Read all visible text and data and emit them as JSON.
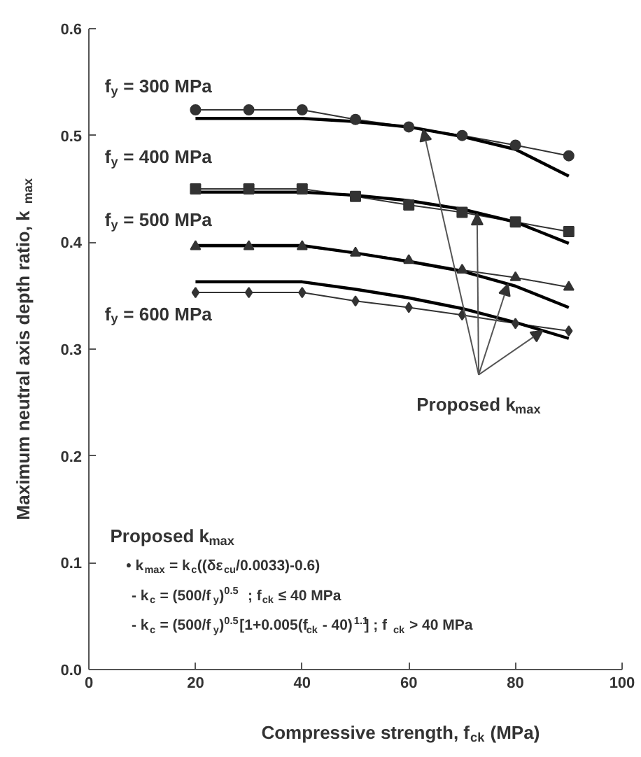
{
  "chart_data": {
    "type": "line",
    "xlabel": "Compressive strength, f$_{ck}$ (MPa)",
    "ylabel": "Maximum neutral axis depth ratio, k$_{max}$",
    "xlim": [
      0,
      100
    ],
    "xticks": [
      0,
      20,
      40,
      60,
      80,
      100
    ],
    "ylim": [
      0,
      0.6
    ],
    "yticks": [
      {
        "value": 0,
        "label": "0.0"
      },
      0.1,
      0.2,
      0.3,
      0.4,
      0.5,
      0.6
    ],
    "grid": false,
    "legend": false,
    "series": [
      {
        "name": "f$_{y}$ = 300 MPa",
        "color": "#333333",
        "marker": "circle",
        "x": [
          20,
          30,
          40,
          50,
          60,
          70,
          80,
          90
        ],
        "values": [
          0.524,
          0.524,
          0.524,
          0.515,
          0.508,
          0.5,
          0.491,
          0.481
        ]
      },
      {
        "name": "f$_{y}$ = 400 MPa",
        "color": "#333333",
        "marker": "square",
        "x": [
          20,
          30,
          40,
          50,
          60,
          70,
          80,
          90
        ],
        "values": [
          0.45,
          0.45,
          0.45,
          0.443,
          0.435,
          0.428,
          0.419,
          0.41
        ]
      },
      {
        "name": "f$_{y}$ = 500 MPa",
        "color": "#333333",
        "marker": "triangle",
        "x": [
          20,
          30,
          40,
          50,
          60,
          70,
          80,
          90
        ],
        "values": [
          0.396,
          0.396,
          0.396,
          0.39,
          0.383,
          0.374,
          0.367,
          0.358
        ]
      },
      {
        "name": "f$_{y}$ = 600 MPa",
        "color": "#333333",
        "marker": "diamond",
        "x": [
          20,
          30,
          40,
          50,
          60,
          70,
          80,
          90
        ],
        "values": [
          0.353,
          0.353,
          0.353,
          0.345,
          0.339,
          0.332,
          0.324,
          0.317
        ]
      },
      {
        "color": "#000000",
        "marker": "none",
        "x": [
          20,
          40,
          50,
          60,
          70,
          80,
          90
        ],
        "values": [
          0.516,
          0.516,
          0.513,
          0.508,
          0.499,
          0.487,
          0.462
        ]
      },
      {
        "color": "#000000",
        "marker": "none",
        "x": [
          20,
          40,
          50,
          60,
          70,
          80,
          90
        ],
        "values": [
          0.447,
          0.447,
          0.444,
          0.439,
          0.431,
          0.419,
          0.399
        ]
      },
      {
        "color": "#000000",
        "marker": "none",
        "x": [
          20,
          40,
          50,
          60,
          70,
          80,
          90
        ],
        "values": [
          0.397,
          0.397,
          0.39,
          0.382,
          0.373,
          0.359,
          0.339
        ]
      },
      {
        "color": "#000000",
        "marker": "none",
        "x": [
          20,
          40,
          50,
          60,
          70,
          80,
          90
        ],
        "values": [
          0.363,
          0.363,
          0.356,
          0.348,
          0.338,
          0.325,
          0.31
        ]
      }
    ],
    "annotations": [
      {
        "text": "Proposed k$_{max}$",
        "x": 72.8,
        "y": 0.427
      },
      "Proposed k$_{max}$",
      "• k$_{max}$ = k$_{c}$((δε$_{cu}$/0.0033)-0.6)",
      "- k$_{c}$ = (500/f$_{y}$)$^{0.5}$  ; f$_{ck}$ ≤ 40 MPa",
      "- k$_{c}$ = (500/f$_{y}$)$^{0.5}$[1+0.005(f$_{ck}$ - 40)$^{1.1}$]  ; f$_{ck}$ > 40 MPa"
    ]
  }
}
